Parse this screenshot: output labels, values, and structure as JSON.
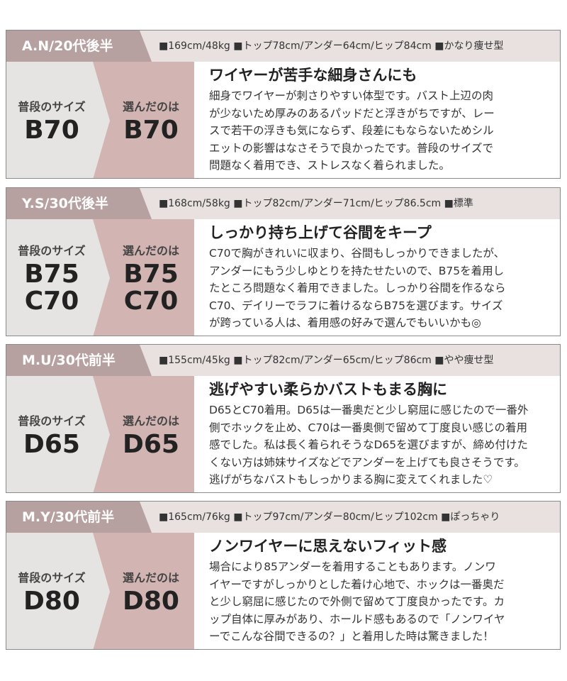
{
  "reviews": [
    {
      "name": "A.N/20代後半",
      "stats": "■169cm/48kg ■トップ78cm/アンダー64cm/ヒップ84cm ■かなり痩せ型",
      "usual_label": "普段のサイズ",
      "usual_size": [
        "B70"
      ],
      "chosen_label": "選んだのは",
      "chosen_size": [
        "B70"
      ],
      "headline": "ワイヤーが苦手な細身さんにも",
      "body": [
        "細身でワイヤーが刺さりやすい体型です。バスト上辺の肉",
        "が少ないため厚みのあるパッドだと浮きがちですが、レー",
        "スで若干の浮きも気にならず、段差にもならないためシル",
        "エットの影響はなさそうで良かったです。普段のサイズで",
        "問題なく着用でき、ストレスなく着られました。"
      ]
    },
    {
      "name": "Y.S/30代後半",
      "stats": "■168cm/58kg ■トップ82cm/アンダー71cm/ヒップ86.5cm ■標準",
      "usual_label": "普段のサイズ",
      "usual_size": [
        "B75",
        "C70"
      ],
      "chosen_label": "選んだのは",
      "chosen_size": [
        "B75",
        "C70"
      ],
      "headline": "しっかり持ち上げて谷間をキープ",
      "body": [
        "C70で胸がきれいに収まり、谷間もしっかりできましたが、",
        "アンダーにもう少しゆとりを持たせたいので、B75を着用し",
        "たところ問題なく着用できました。しっかり谷間を作るなら",
        "C70、デイリーでラフに着けるならB75を選びます。サイズ",
        "が跨っている人は、着用感の好みで選んでもいいかも◎"
      ]
    },
    {
      "name": "M.U/30代前半",
      "stats": "■155cm/45kg ■トップ82cm/アンダー65cm/ヒップ86cm ■やや痩せ型",
      "usual_label": "普段のサイズ",
      "usual_size": [
        "D65"
      ],
      "chosen_label": "選んだのは",
      "chosen_size": [
        "D65"
      ],
      "headline": "逃げやすい柔らかバストもまる胸に",
      "body": [
        "D65とC70着用。D65は一番奥だと少し窮屈に感じたので一番外",
        "側でホックを止め、C70は一番奥側で留めて丁度良い感じの着用",
        "感でした。私は長く着られそうなD65を選びますが、締め付けた",
        "くない方は姉妹サイズなどでアンダーを上げても良さそうです。",
        "逃げがちなバストもしっかりまる胸に変えてくれました♡"
      ]
    },
    {
      "name": "M.Y/30代前半",
      "stats": "■165cm/76kg ■トップ97cm/アンダー80cm/ヒップ102cm ■ぽっちゃり",
      "usual_label": "普段のサイズ",
      "usual_size": [
        "D80"
      ],
      "chosen_label": "選んだのは",
      "chosen_size": [
        "D80"
      ],
      "headline": "ノンワイヤーに思えないフィット感",
      "body": [
        "場合により85アンダーを着用することもあります。ノンワ",
        "イヤーですがしっかりとした着け心地で、ホックは一番奥だ",
        "と少し窮屈に感じたので外側で留めて丁度良かったです。カ",
        "ップ自体に厚みがあり、ホールド感もあるので「ノンワイヤ",
        "ーでこんな谷間できるの？」と着用した時は驚きました！"
      ]
    }
  ]
}
